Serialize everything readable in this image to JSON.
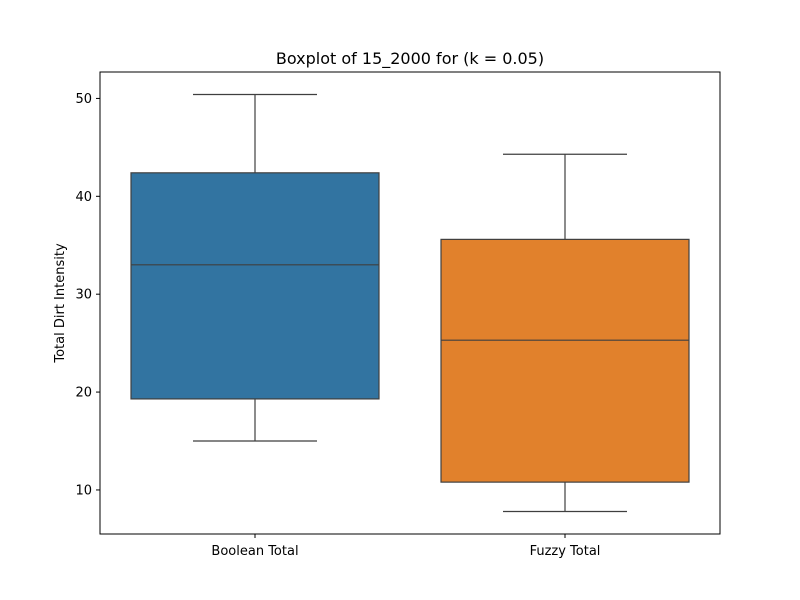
{
  "chart_data": {
    "type": "box",
    "title": "Boxplot of 15_2000 for (k = 0.05)",
    "xlabel": "",
    "ylabel": "Total Dirt Intensity",
    "ylim": [
      5.5,
      52.7
    ],
    "yticks": [
      10,
      20,
      30,
      40,
      50
    ],
    "grid": false,
    "series": [
      {
        "category": "Boolean Total",
        "color": "#3274a1",
        "whisker_low": 15.0,
        "q1": 19.3,
        "median": 33.0,
        "q3": 42.4,
        "whisker_high": 50.4
      },
      {
        "category": "Fuzzy Total",
        "color": "#e1812c",
        "whisker_low": 7.8,
        "q1": 10.8,
        "median": 25.3,
        "q3": 35.6,
        "whisker_high": 44.3
      }
    ]
  }
}
